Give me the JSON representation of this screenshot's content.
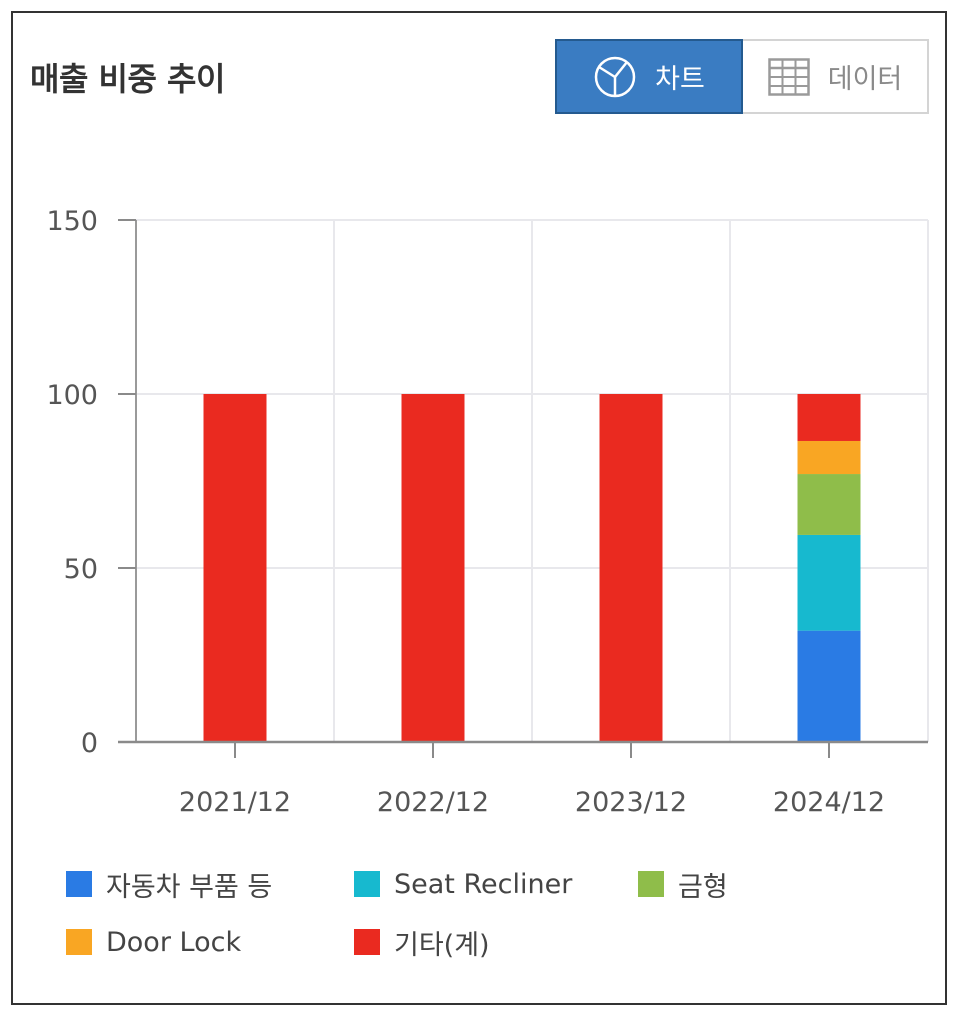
{
  "header": {
    "title": "매출 비중 추이",
    "toggle": {
      "chart_label": "차트",
      "data_label": "데이터",
      "active": "chart"
    }
  },
  "colors": {
    "auto_parts": "#2a7be4",
    "seat_recliner": "#17b9cf",
    "mold": "#8fbd4a",
    "door_lock": "#f9a623",
    "other": "#ea2a20",
    "toggle_active": "#3a7cc2"
  },
  "chart_data": {
    "type": "bar",
    "stacked": true,
    "categories": [
      "2021/12",
      "2022/12",
      "2023/12",
      "2024/12"
    ],
    "series": [
      {
        "name": "자동차 부품 등",
        "color": "#2a7be4",
        "values": [
          0,
          0,
          0,
          32
        ]
      },
      {
        "name": "Seat Recliner",
        "color": "#17b9cf",
        "values": [
          0,
          0,
          0,
          27.5
        ]
      },
      {
        "name": "금형",
        "color": "#8fbd4a",
        "values": [
          0,
          0,
          0,
          17.5
        ]
      },
      {
        "name": "Door Lock",
        "color": "#f9a623",
        "values": [
          0,
          0,
          0,
          9.5
        ]
      },
      {
        "name": "기타(계)",
        "color": "#ea2a20",
        "values": [
          100,
          100,
          100,
          13.5
        ]
      }
    ],
    "ylim": [
      0,
      150
    ],
    "yticks": [
      0,
      50,
      100,
      150
    ],
    "grid": true,
    "legend_position": "bottom"
  }
}
